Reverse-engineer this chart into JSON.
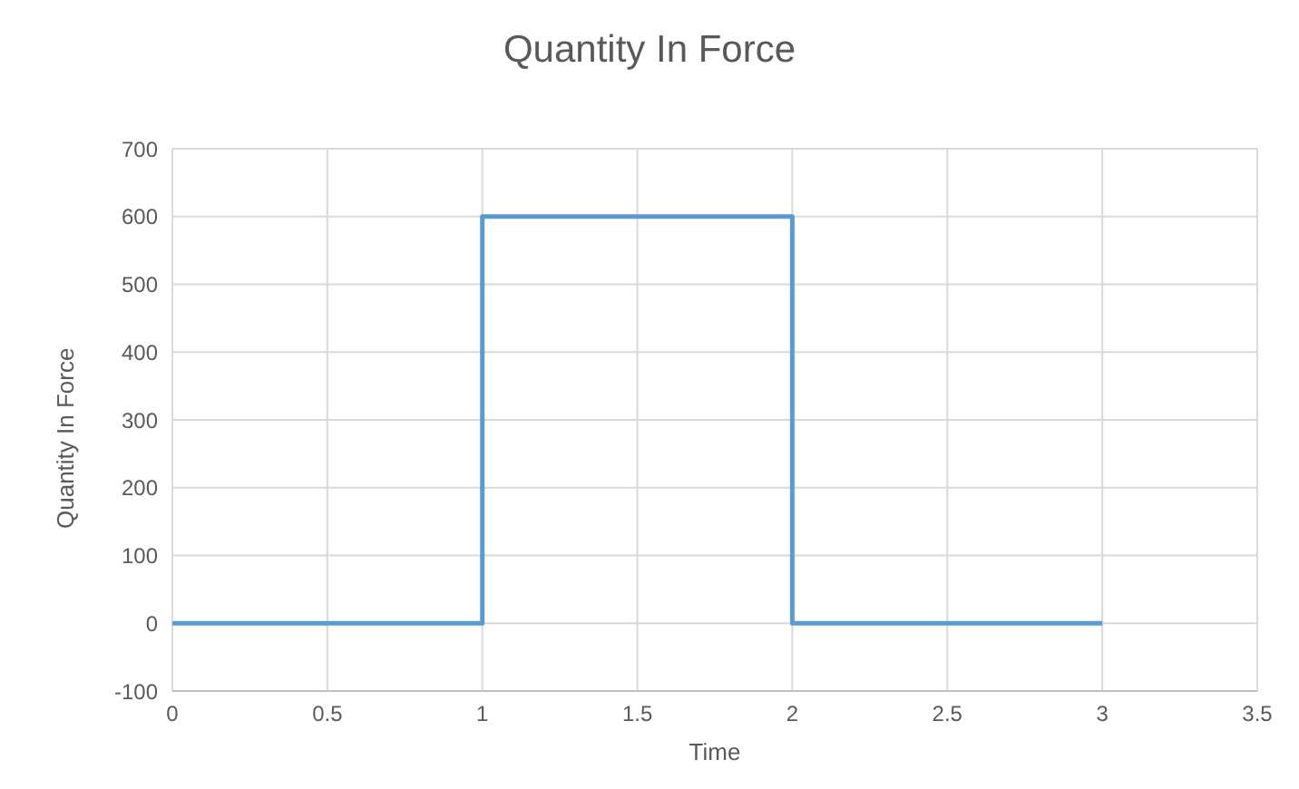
{
  "chart_data": {
    "type": "line",
    "title": "Quantity In Force",
    "xlabel": "Time",
    "ylabel": "Quantity In Force",
    "x": [
      0,
      1,
      1,
      2,
      2,
      3
    ],
    "series": [
      {
        "color": "#5b9bd5",
        "values": [
          0,
          0,
          600,
          600,
          0,
          0
        ]
      }
    ],
    "xlim": [
      0,
      3.5
    ],
    "xticks": [
      0,
      0.5,
      1,
      1.5,
      2,
      2.5,
      3,
      3.5
    ],
    "ylim": [
      -100,
      700
    ],
    "yticks": [
      -100,
      0,
      100,
      200,
      300,
      400,
      500,
      600,
      700
    ],
    "grid": true,
    "legend": false,
    "marker": "none",
    "line_style": "solid"
  }
}
